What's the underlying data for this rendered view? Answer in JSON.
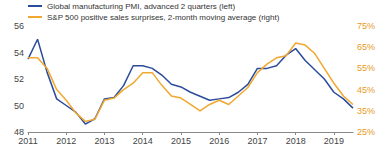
{
  "chart_data": {
    "type": "line",
    "x": [
      2011,
      2011.25,
      2011.5,
      2011.75,
      2012,
      2012.25,
      2012.5,
      2012.75,
      2013,
      2013.25,
      2013.5,
      2013.75,
      2014,
      2014.25,
      2014.5,
      2014.75,
      2015,
      2015.25,
      2015.5,
      2015.75,
      2016,
      2016.25,
      2016.5,
      2016.75,
      2017,
      2017.25,
      2017.5,
      2017.75,
      2018,
      2018.25,
      2018.5,
      2018.75,
      2019,
      2019.25,
      2019.5
    ],
    "xlim": [
      2011,
      2019.5
    ],
    "xticks": [
      2011,
      2012,
      2013,
      2014,
      2015,
      2016,
      2017,
      2018,
      2019
    ],
    "ylim": [
      48,
      56
    ],
    "yticks": [
      48,
      50,
      52,
      54,
      56
    ],
    "y2lim": [
      25,
      75
    ],
    "y2ticks": [
      {
        "value": 25,
        "label": "25%"
      },
      {
        "value": 35,
        "label": "35%"
      },
      {
        "value": 45,
        "label": "45%"
      },
      {
        "value": 55,
        "label": "55%"
      },
      {
        "value": 65,
        "label": "65%"
      },
      {
        "value": 75,
        "label": "75%"
      }
    ],
    "series": [
      {
        "name": "Global manufacturing PMI, advanced 2 quarters (left)",
        "color": "#2b4c9b",
        "values": [
          53.5,
          55,
          52.5,
          50.5,
          50,
          49.5,
          48.6,
          49,
          50.5,
          50.6,
          51.5,
          53,
          53,
          52.8,
          52.3,
          51.6,
          51.4,
          51,
          50.7,
          50.4,
          50.5,
          50.6,
          51,
          51.6,
          52.8,
          52.8,
          53,
          53.8,
          54.3,
          53.4,
          52.7,
          52,
          51,
          50.5,
          49.8
        ]
      },
      {
        "name": "S&P 500 positive sales surprises, 2-month moving average (right)",
        "color": "#f0a830",
        "axis": "y2",
        "values": [
          60,
          60,
          55,
          45,
          40,
          34,
          30,
          31,
          40,
          41,
          45,
          48,
          53,
          53,
          47,
          42,
          41,
          38,
          35,
          38,
          40,
          38,
          42,
          46,
          53,
          57,
          60,
          61,
          67,
          66,
          62,
          55,
          48,
          42,
          38
        ]
      }
    ],
    "legend": "upper left",
    "grid": false
  }
}
